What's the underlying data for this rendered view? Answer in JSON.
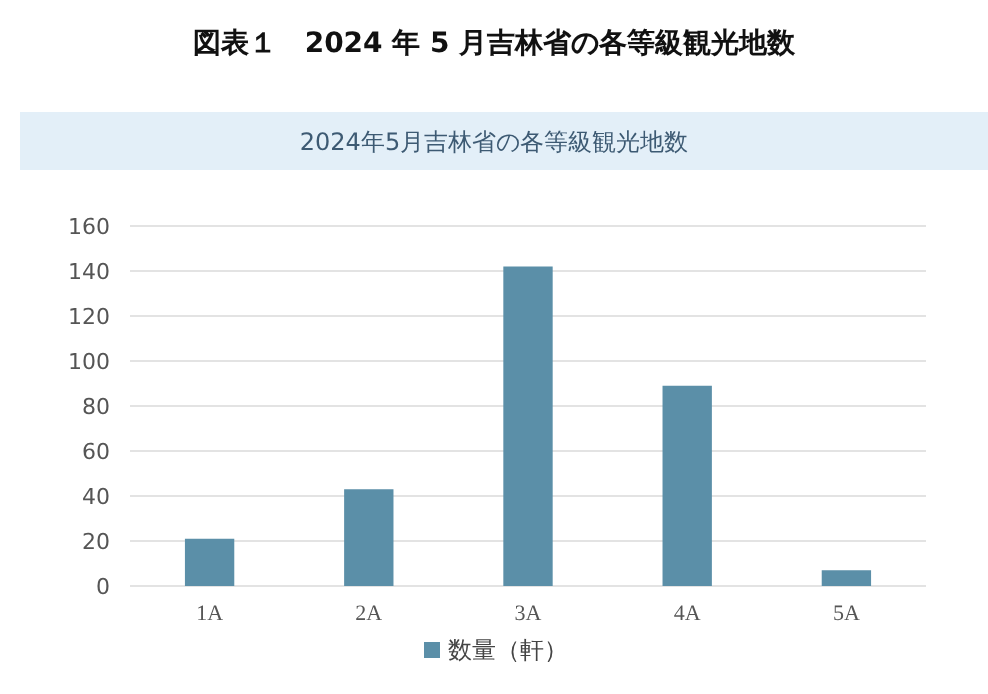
{
  "chart_data": {
    "type": "bar",
    "title": "図表１　2024 年 5 月吉林省の各等級観光地数",
    "subtitle": "2024年5月吉林省の各等級観光地数",
    "categories": [
      "1A",
      "2A",
      "3A",
      "4A",
      "5A"
    ],
    "series": [
      {
        "name": "数量（軒）",
        "color": "#5b8fa8",
        "values": [
          21,
          43,
          142,
          89,
          7
        ]
      }
    ],
    "ylim": [
      0,
      160
    ],
    "yticks": [
      0,
      20,
      40,
      60,
      80,
      100,
      120,
      140,
      160
    ],
    "grid": "y",
    "legend": "bottom"
  }
}
